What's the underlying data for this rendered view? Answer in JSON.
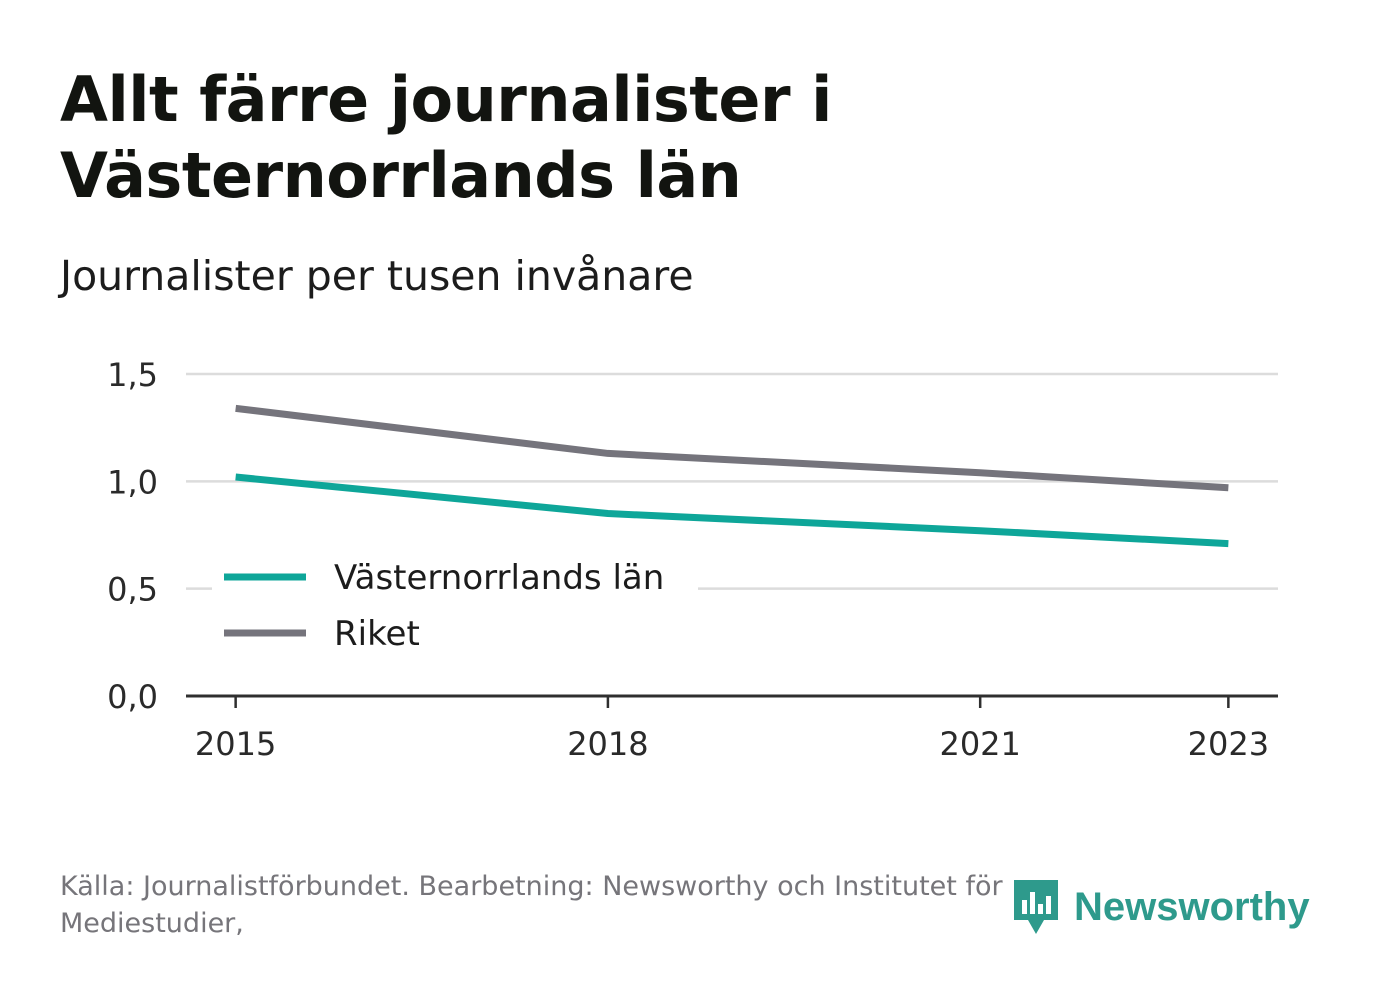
{
  "title": "Allt färre journalister i Västernorrlands län",
  "subtitle": "Journalister per tusen invånare",
  "source": "Källa: Journalistförbundet. Bearbetning: Newsworthy och Institutet för Mediestudier,",
  "logo": {
    "text": "Newsworthy",
    "icon": "newsworthy-bar-chart-bubble-icon",
    "color": "#2e9a8c"
  },
  "chart_data": {
    "type": "line",
    "x": [
      2015,
      2018,
      2021,
      2023
    ],
    "x_tick_labels": [
      "2015",
      "2018",
      "2021",
      "2023"
    ],
    "y_tick_labels": [
      "0,0",
      "0,5",
      "1,0",
      "1,5"
    ],
    "y_ticks": [
      0,
      0.5,
      1.0,
      1.5
    ],
    "ylim": [
      0,
      1.5
    ],
    "xlim": [
      2014.6,
      2023.4
    ],
    "grid": true,
    "legend_position": "bottom-left",
    "series": [
      {
        "name": "Västernorrlands län",
        "color": "#0ea699",
        "values": [
          1.02,
          0.85,
          0.77,
          0.71
        ]
      },
      {
        "name": "Riket",
        "color": "#75747c",
        "values": [
          1.34,
          1.13,
          1.04,
          0.97
        ]
      }
    ]
  }
}
